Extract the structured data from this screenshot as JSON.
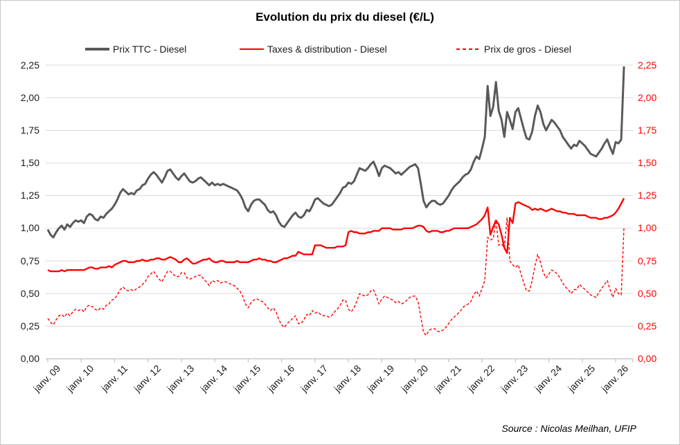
{
  "page": {
    "title": "Evolution du prix du diesel (€/L)",
    "source": "Source : Nicolas Meilhan, UFIP"
  },
  "chart_data": {
    "type": "line",
    "title": "Evolution du prix du diesel (€/L)",
    "xlabel": "",
    "ylabel": "€/L",
    "ylim": [
      0,
      2.25
    ],
    "grid": "horizontal",
    "legend_position": "top",
    "grid_color": "#d9d9d9",
    "axis_line_color": "#bfbfbf",
    "axis_colors": {
      "left": "#1a1a1a",
      "right": "#ff0000"
    },
    "x_start": "janv. 2009",
    "x_end": "avr. 2026",
    "x_interval": "monthly",
    "x_tick_labels": [
      "janv. 09",
      "janv. 10",
      "janv. 11",
      "janv. 12",
      "janv. 13",
      "janv. 14",
      "janv. 15",
      "janv. 16",
      "janv. 17",
      "janv. 18",
      "janv. 19",
      "janv. 20",
      "janv. 21",
      "janv. 22",
      "janv. 23",
      "janv. 24",
      "janv. 25",
      "janv. 26"
    ],
    "y_tick_labels": [
      "2,25",
      "2,00",
      "1,75",
      "1,50",
      "1,25",
      "1,00",
      "0,75",
      "0,50",
      "0,25",
      "0,00"
    ],
    "y_tick_values": [
      2.25,
      2.0,
      1.75,
      1.5,
      1.25,
      1.0,
      0.75,
      0.5,
      0.25,
      0.0
    ],
    "series": [
      {
        "name": "Prix TTC - Diesel",
        "color": "#595959",
        "style": "solid",
        "width": 3,
        "values": [
          0.99,
          0.95,
          0.93,
          0.97,
          1.0,
          1.02,
          0.99,
          1.03,
          1.01,
          1.04,
          1.06,
          1.05,
          1.06,
          1.04,
          1.09,
          1.11,
          1.1,
          1.07,
          1.06,
          1.09,
          1.08,
          1.11,
          1.13,
          1.15,
          1.18,
          1.22,
          1.27,
          1.3,
          1.28,
          1.26,
          1.27,
          1.26,
          1.29,
          1.3,
          1.33,
          1.34,
          1.38,
          1.41,
          1.43,
          1.41,
          1.38,
          1.35,
          1.39,
          1.44,
          1.45,
          1.42,
          1.39,
          1.37,
          1.4,
          1.42,
          1.39,
          1.36,
          1.35,
          1.36,
          1.38,
          1.39,
          1.37,
          1.35,
          1.33,
          1.35,
          1.33,
          1.34,
          1.33,
          1.34,
          1.33,
          1.32,
          1.31,
          1.3,
          1.29,
          1.26,
          1.22,
          1.16,
          1.13,
          1.18,
          1.21,
          1.22,
          1.22,
          1.2,
          1.18,
          1.14,
          1.12,
          1.13,
          1.1,
          1.05,
          1.02,
          1.01,
          1.04,
          1.07,
          1.1,
          1.12,
          1.09,
          1.08,
          1.1,
          1.14,
          1.13,
          1.17,
          1.22,
          1.23,
          1.21,
          1.19,
          1.18,
          1.17,
          1.18,
          1.21,
          1.24,
          1.27,
          1.31,
          1.32,
          1.35,
          1.34,
          1.36,
          1.41,
          1.46,
          1.45,
          1.44,
          1.46,
          1.49,
          1.51,
          1.46,
          1.4,
          1.46,
          1.48,
          1.47,
          1.46,
          1.44,
          1.42,
          1.43,
          1.41,
          1.43,
          1.45,
          1.47,
          1.48,
          1.49,
          1.46,
          1.34,
          1.21,
          1.16,
          1.19,
          1.21,
          1.21,
          1.19,
          1.18,
          1.19,
          1.22,
          1.25,
          1.29,
          1.32,
          1.34,
          1.36,
          1.39,
          1.41,
          1.42,
          1.45,
          1.51,
          1.55,
          1.53,
          1.61,
          1.7,
          2.09,
          1.86,
          1.93,
          2.12,
          1.9,
          1.83,
          1.7,
          1.89,
          1.83,
          1.76,
          1.89,
          1.92,
          1.84,
          1.76,
          1.69,
          1.68,
          1.74,
          1.86,
          1.94,
          1.89,
          1.8,
          1.75,
          1.79,
          1.83,
          1.81,
          1.78,
          1.75,
          1.7,
          1.67,
          1.64,
          1.61,
          1.64,
          1.63,
          1.67,
          1.65,
          1.63,
          1.6,
          1.57,
          1.56,
          1.55,
          1.58,
          1.61,
          1.65,
          1.68,
          1.62,
          1.57,
          1.66,
          1.65,
          1.68,
          2.24
        ]
      },
      {
        "name": "Taxes & distribution - Diesel",
        "color": "#ff0000",
        "style": "solid",
        "width": 2.4,
        "values": [
          0.68,
          0.67,
          0.67,
          0.67,
          0.67,
          0.68,
          0.67,
          0.68,
          0.68,
          0.68,
          0.68,
          0.68,
          0.68,
          0.68,
          0.69,
          0.7,
          0.7,
          0.69,
          0.69,
          0.7,
          0.7,
          0.7,
          0.71,
          0.7,
          0.72,
          0.73,
          0.74,
          0.75,
          0.75,
          0.74,
          0.74,
          0.74,
          0.75,
          0.75,
          0.76,
          0.75,
          0.75,
          0.76,
          0.76,
          0.77,
          0.77,
          0.76,
          0.76,
          0.77,
          0.78,
          0.77,
          0.76,
          0.74,
          0.74,
          0.76,
          0.77,
          0.75,
          0.73,
          0.73,
          0.74,
          0.75,
          0.76,
          0.76,
          0.77,
          0.75,
          0.74,
          0.74,
          0.75,
          0.75,
          0.74,
          0.74,
          0.74,
          0.74,
          0.75,
          0.74,
          0.74,
          0.74,
          0.74,
          0.75,
          0.76,
          0.76,
          0.77,
          0.76,
          0.76,
          0.75,
          0.75,
          0.74,
          0.74,
          0.75,
          0.76,
          0.77,
          0.77,
          0.78,
          0.79,
          0.79,
          0.82,
          0.81,
          0.8,
          0.8,
          0.8,
          0.8,
          0.87,
          0.87,
          0.87,
          0.86,
          0.85,
          0.85,
          0.85,
          0.85,
          0.86,
          0.86,
          0.86,
          0.87,
          0.97,
          0.98,
          0.97,
          0.97,
          0.96,
          0.96,
          0.96,
          0.97,
          0.97,
          0.98,
          0.98,
          0.98,
          1.0,
          1.0,
          1.0,
          1.0,
          0.99,
          0.99,
          0.99,
          0.99,
          1.0,
          1.0,
          1.0,
          1.0,
          1.01,
          1.02,
          1.02,
          1.01,
          0.98,
          0.97,
          0.98,
          0.98,
          0.98,
          0.97,
          0.97,
          0.98,
          0.98,
          0.99,
          1.0,
          1.0,
          1.0,
          1.0,
          1.0,
          1.0,
          1.01,
          1.02,
          1.03,
          1.05,
          1.07,
          1.1,
          1.16,
          0.95,
          1.01,
          1.06,
          1.03,
          0.95,
          0.85,
          0.81,
          1.08,
          1.04,
          1.19,
          1.2,
          1.19,
          1.18,
          1.17,
          1.16,
          1.14,
          1.15,
          1.14,
          1.15,
          1.14,
          1.13,
          1.14,
          1.15,
          1.14,
          1.13,
          1.13,
          1.12,
          1.12,
          1.11,
          1.11,
          1.11,
          1.1,
          1.1,
          1.1,
          1.1,
          1.09,
          1.08,
          1.08,
          1.08,
          1.07,
          1.07,
          1.08,
          1.08,
          1.09,
          1.1,
          1.12,
          1.15,
          1.19,
          1.23
        ]
      },
      {
        "name": "Prix de gros - Diesel",
        "color": "#ff0000",
        "style": "dashed",
        "width": 1.4,
        "values": [
          0.31,
          0.28,
          0.26,
          0.3,
          0.33,
          0.34,
          0.32,
          0.35,
          0.33,
          0.36,
          0.38,
          0.37,
          0.38,
          0.36,
          0.4,
          0.41,
          0.4,
          0.38,
          0.37,
          0.39,
          0.38,
          0.41,
          0.42,
          0.45,
          0.46,
          0.49,
          0.53,
          0.55,
          0.53,
          0.52,
          0.53,
          0.52,
          0.54,
          0.55,
          0.57,
          0.59,
          0.63,
          0.65,
          0.67,
          0.64,
          0.61,
          0.59,
          0.63,
          0.67,
          0.67,
          0.65,
          0.63,
          0.63,
          0.66,
          0.66,
          0.62,
          0.61,
          0.62,
          0.63,
          0.64,
          0.64,
          0.61,
          0.59,
          0.56,
          0.6,
          0.59,
          0.6,
          0.58,
          0.59,
          0.59,
          0.58,
          0.57,
          0.56,
          0.54,
          0.52,
          0.48,
          0.42,
          0.39,
          0.43,
          0.45,
          0.46,
          0.45,
          0.44,
          0.42,
          0.39,
          0.37,
          0.39,
          0.36,
          0.3,
          0.26,
          0.24,
          0.27,
          0.29,
          0.31,
          0.33,
          0.27,
          0.27,
          0.3,
          0.34,
          0.33,
          0.37,
          0.35,
          0.36,
          0.34,
          0.33,
          0.33,
          0.32,
          0.33,
          0.36,
          0.38,
          0.41,
          0.45,
          0.45,
          0.38,
          0.36,
          0.39,
          0.44,
          0.5,
          0.49,
          0.48,
          0.49,
          0.52,
          0.53,
          0.48,
          0.42,
          0.46,
          0.48,
          0.47,
          0.46,
          0.45,
          0.43,
          0.44,
          0.42,
          0.43,
          0.45,
          0.47,
          0.48,
          0.48,
          0.44,
          0.32,
          0.2,
          0.18,
          0.22,
          0.23,
          0.23,
          0.21,
          0.21,
          0.22,
          0.24,
          0.27,
          0.3,
          0.32,
          0.34,
          0.36,
          0.39,
          0.41,
          0.42,
          0.44,
          0.49,
          0.52,
          0.48,
          0.54,
          0.6,
          0.93,
          0.91,
          0.92,
          1.06,
          0.87,
          0.88,
          0.85,
          1.08,
          0.75,
          0.72,
          0.7,
          0.72,
          0.65,
          0.58,
          0.52,
          0.52,
          0.6,
          0.71,
          0.8,
          0.74,
          0.66,
          0.62,
          0.65,
          0.68,
          0.67,
          0.65,
          0.62,
          0.58,
          0.55,
          0.53,
          0.5,
          0.53,
          0.53,
          0.57,
          0.55,
          0.53,
          0.51,
          0.49,
          0.48,
          0.47,
          0.51,
          0.54,
          0.57,
          0.6,
          0.53,
          0.47,
          0.54,
          0.5,
          0.49,
          1.01
        ]
      }
    ]
  }
}
